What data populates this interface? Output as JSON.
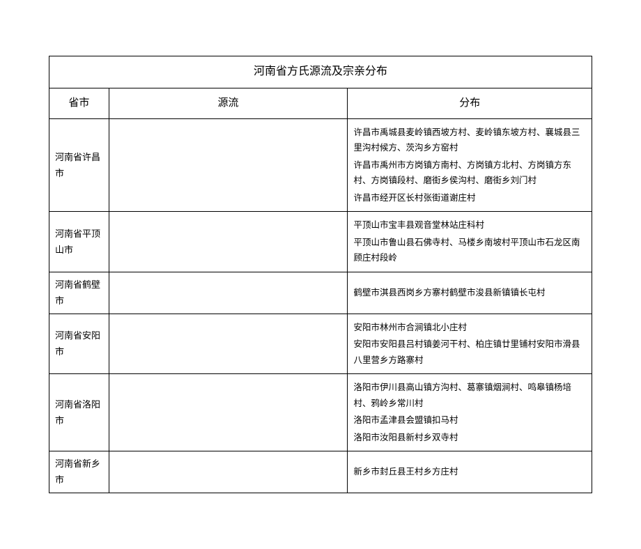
{
  "title": "河南省方氏源流及宗亲分布",
  "headers": {
    "province": "省市",
    "source": "源流",
    "distribution": "分布"
  },
  "rows": [
    {
      "province": "河南省许昌市",
      "source": "",
      "distribution": [
        "许昌市禹城县麦岭镇西坡方村、麦岭镇东坡方村、襄城县三里沟村候方、茨沟乡方窑村",
        "许昌市禹州市方岗镇方南村、方岗镇方北村、方岗镇方东村、方岗镇段村、磨街乡侯沟村、磨街乡刘门村",
        "许昌市经开区长村张街道谢庄村"
      ]
    },
    {
      "province": "河南省平顶山市",
      "source": "",
      "distribution": [
        "平顶山市宝丰县观音堂林站庄科村",
        "平顶山市鲁山县石佛寺村、马楼乡南坡村平顶山市石龙区南顾庄村段岭"
      ]
    },
    {
      "province": "河南省鹤壁市",
      "source": "",
      "distribution": [
        "鹤壁市淇县西岗乡方寨村鹤壁市浚县新镇镇长屯村"
      ]
    },
    {
      "province": "河南省安阳市",
      "source": "",
      "distribution": [
        "安阳市林州市合涧镇北小庄村",
        "安阳市安阳县吕村镇姜河干村、柏庄镇廿里铺村安阳市滑县八里营乡方路寨村"
      ]
    },
    {
      "province": "河南省洛阳市",
      "source": "",
      "distribution": [
        "洛阳市伊川县高山镇方沟村、葛寨镇烟涧村、鸣皋镇杨培村、鸦岭乡常川村",
        "洛阳市孟津县会盟镇扣马村",
        "洛阳市汝阳县新村乡双寺村"
      ]
    },
    {
      "province": "河南省新乡市",
      "source": "",
      "distribution": [
        "新乡市封丘县王村乡方庄村"
      ]
    }
  ]
}
